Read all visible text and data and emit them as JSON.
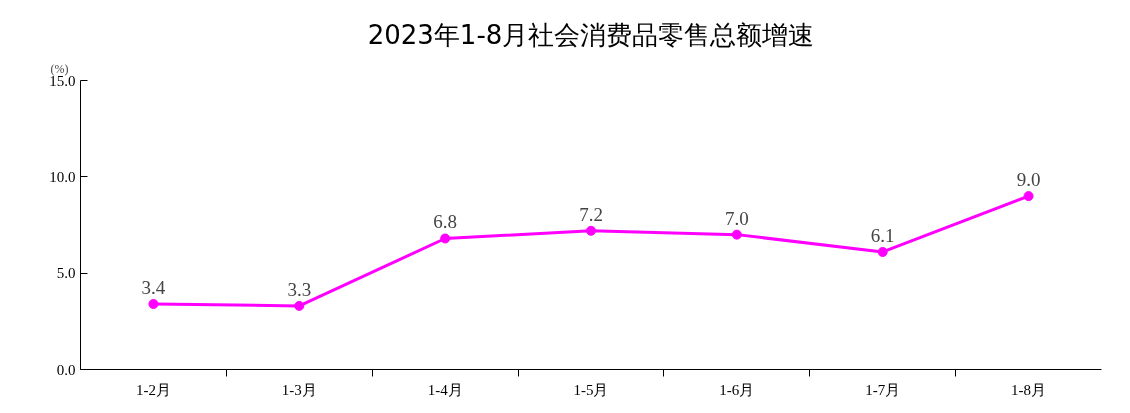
{
  "chart_data": {
    "type": "line",
    "title": "2023年1-8月社会消费品零售总额增速",
    "ylabel": "(%)",
    "categories": [
      "1-2月",
      "1-3月",
      "1-4月",
      "1-5月",
      "1-6月",
      "1-7月",
      "1-8月"
    ],
    "series": [
      {
        "color": "#ff00ff",
        "values": [
          3.4,
          3.3,
          6.8,
          7.2,
          7.0,
          6.1,
          9.0
        ],
        "value_labels": [
          "3.4",
          "3.3",
          "6.8",
          "7.2",
          "7.0",
          "6.1",
          "9.0"
        ]
      }
    ],
    "ylim": [
      0,
      15
    ],
    "yticks": [
      {
        "value": 0,
        "label": "0.0"
      },
      {
        "value": 5,
        "label": "5.0"
      },
      {
        "value": 10,
        "label": "10.0"
      },
      {
        "value": 15,
        "label": "15.0"
      }
    ],
    "grid": false,
    "marker": "circle",
    "line_style": "solid"
  }
}
